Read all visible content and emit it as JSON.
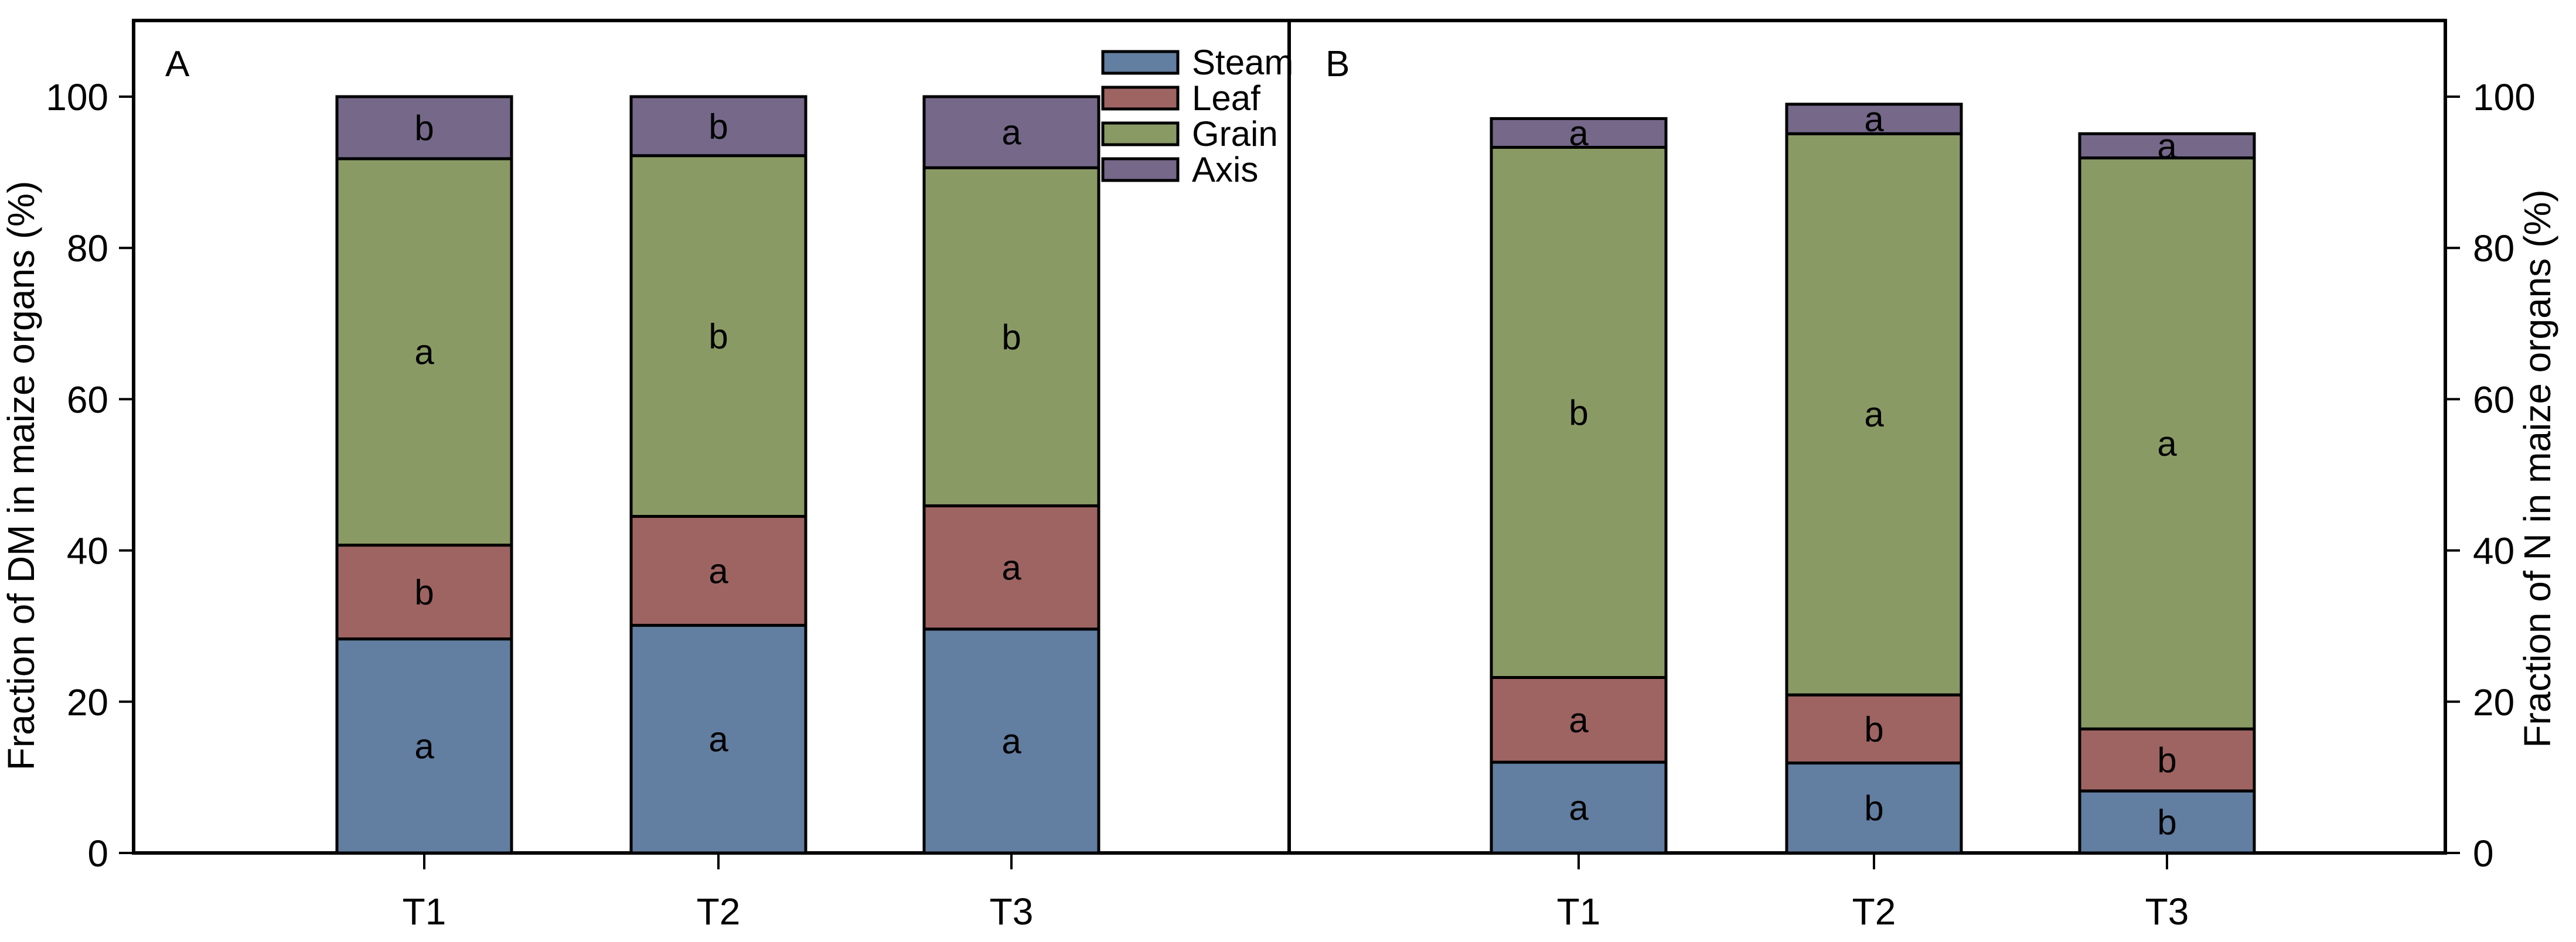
{
  "figure": {
    "panel_a_label": "A",
    "panel_b_label": "B",
    "left_axis_title": "Fraction of DM in maize organs (%)",
    "right_axis_title": "Fraction of N in maize organs (%)",
    "y_ticks": [
      0,
      20,
      40,
      60,
      80,
      100
    ],
    "categories": [
      "T1",
      "T2",
      "T3"
    ]
  },
  "legend": {
    "position": "top-right-of-panel-A",
    "items": [
      {
        "label": "Steam",
        "color": "#627ea0"
      },
      {
        "label": "Leaf",
        "color": "#9e6462"
      },
      {
        "label": "Grain",
        "color": "#8a9a64"
      },
      {
        "label": "Axis",
        "color": "#756889"
      }
    ]
  },
  "chart_data": [
    {
      "type": "bar",
      "stacked": true,
      "panel": "A",
      "title": "",
      "xlabel": "",
      "ylabel": "Fraction of DM in maize organs (%)",
      "categories": [
        "T1",
        "T2",
        "T3"
      ],
      "ylim": [
        0,
        110
      ],
      "y_ticks": [
        0,
        20,
        40,
        60,
        80,
        100
      ],
      "grid": false,
      "series": [
        {
          "name": "Steam",
          "values": [
            28.3,
            30.1,
            29.6
          ],
          "letters": [
            "a",
            "a",
            "a"
          ]
        },
        {
          "name": "Leaf",
          "values": [
            12.4,
            14.4,
            16.3
          ],
          "letters": [
            "b",
            "a",
            "a"
          ]
        },
        {
          "name": "Grain",
          "values": [
            51.1,
            47.7,
            44.7
          ],
          "letters": [
            "a",
            "b",
            "b"
          ]
        },
        {
          "name": "Axis",
          "values": [
            8.2,
            7.8,
            9.4
          ],
          "letters": [
            "b",
            "b",
            "a"
          ]
        }
      ],
      "bar_totals": [
        100.0,
        100.0,
        100.0
      ]
    },
    {
      "type": "bar",
      "stacked": true,
      "panel": "B",
      "title": "",
      "xlabel": "",
      "ylabel": "Fraction of N in maize organs (%)",
      "categories": [
        "T1",
        "T2",
        "T3"
      ],
      "ylim": [
        0,
        110
      ],
      "y_ticks": [
        0,
        20,
        40,
        60,
        80,
        100
      ],
      "grid": false,
      "series": [
        {
          "name": "Steam",
          "values": [
            12.0,
            11.9,
            8.2
          ],
          "letters": [
            "a",
            "b",
            "b"
          ]
        },
        {
          "name": "Leaf",
          "values": [
            11.2,
            9.0,
            8.2
          ],
          "letters": [
            "a",
            "b",
            "b"
          ]
        },
        {
          "name": "Grain",
          "values": [
            70.1,
            74.2,
            75.5
          ],
          "letters": [
            "b",
            "a",
            "a"
          ]
        },
        {
          "name": "Axis",
          "values": [
            3.8,
            3.9,
            3.2
          ],
          "letters": [
            "a",
            "a",
            "a"
          ]
        }
      ],
      "bar_totals": [
        97.1,
        99.0,
        95.1
      ]
    }
  ]
}
